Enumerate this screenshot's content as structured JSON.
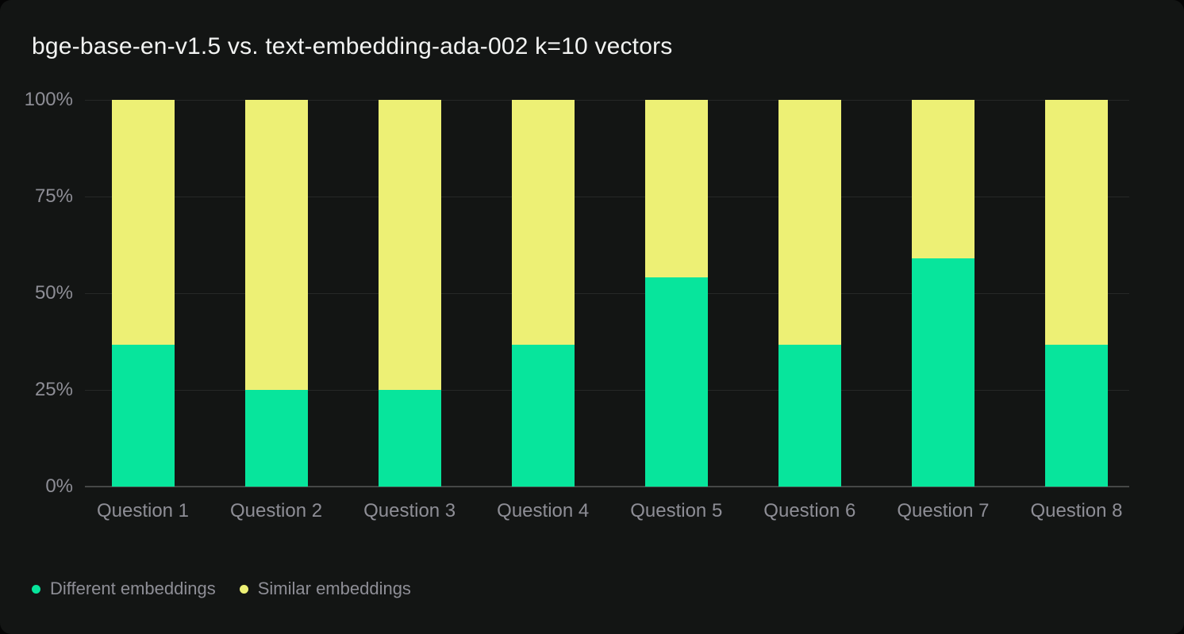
{
  "chart_data": {
    "type": "bar",
    "stacked": true,
    "title": "bge-base-en-v1.5 vs. text-embedding-ada-002 k=10 vectors",
    "categories": [
      "Question 1",
      "Question 2",
      "Question 3",
      "Question 4",
      "Question 5",
      "Question 6",
      "Question 7",
      "Question 8"
    ],
    "series": [
      {
        "name": "Different embeddings",
        "color": "#07e59c",
        "values": [
          36.6,
          25,
          25,
          36.6,
          54.2,
          36.6,
          59.1,
          36.6
        ]
      },
      {
        "name": "Similar embeddings",
        "color": "#edf075",
        "values": [
          63.4,
          75,
          75,
          63.4,
          45.8,
          63.4,
          40.9,
          63.4
        ]
      }
    ],
    "value_unit": "%",
    "ylim": [
      0,
      100
    ],
    "y_ticks": [
      {
        "label": "0%",
        "value": 0
      },
      {
        "label": "25%",
        "value": 25
      },
      {
        "label": "50%",
        "value": 50
      },
      {
        "label": "75%",
        "value": 75
      },
      {
        "label": "100%",
        "value": 100
      }
    ],
    "grid": true,
    "legend_position": "bottom-left"
  },
  "legend": {
    "items": [
      {
        "label": "Different embeddings",
        "color": "#07e59c"
      },
      {
        "label": "Similar embeddings",
        "color": "#edf075"
      }
    ]
  },
  "colors": {
    "background": "#050505",
    "card": "#131514",
    "title_text": "#f2f3f2",
    "axis_text": "#8e8e96",
    "gridline": "#262827",
    "axis_line": "#454746",
    "different": "#07e59c",
    "similar": "#edf075"
  }
}
